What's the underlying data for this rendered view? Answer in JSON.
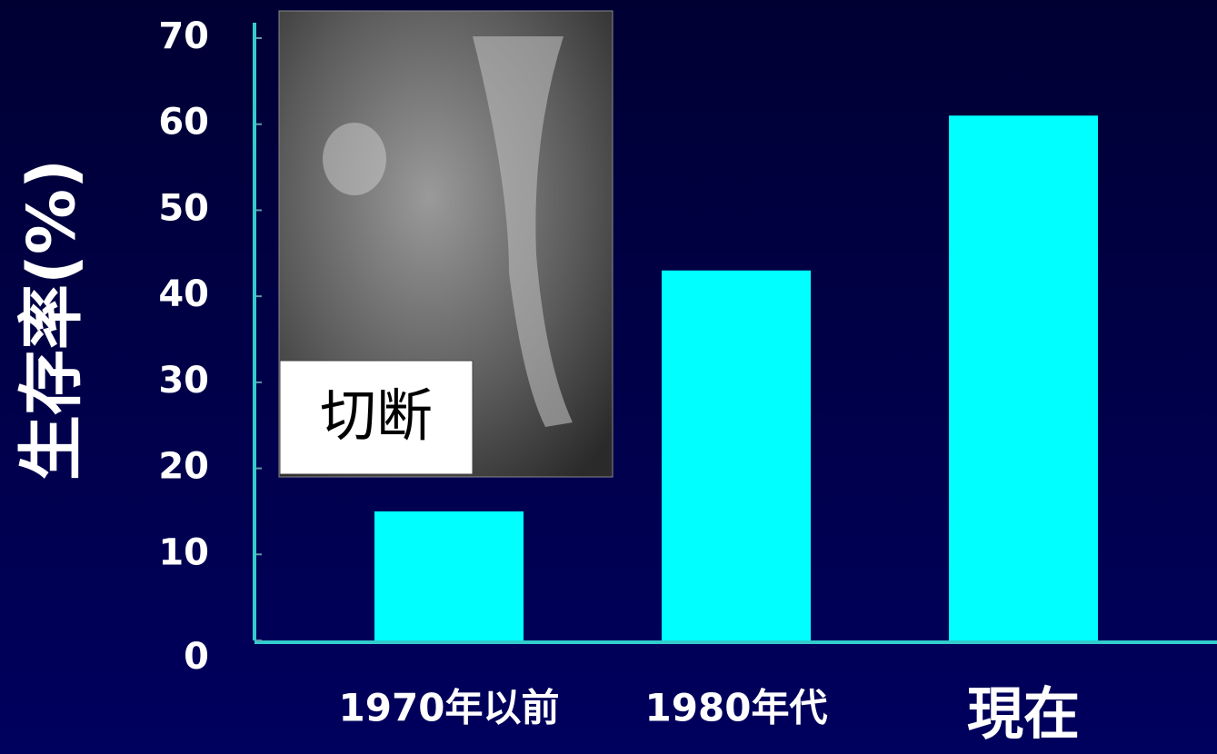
{
  "chart_data": {
    "type": "bar",
    "y_label": "生存率(%)",
    "categories": [
      "1970年以前",
      "1980年代",
      "現在"
    ],
    "values": [
      15,
      43,
      61
    ],
    "color": "#00ffff",
    "ylim": [
      0,
      70
    ],
    "yticks": [
      0,
      10,
      20,
      30,
      40,
      50,
      60,
      70
    ],
    "annotation": "切断"
  }
}
